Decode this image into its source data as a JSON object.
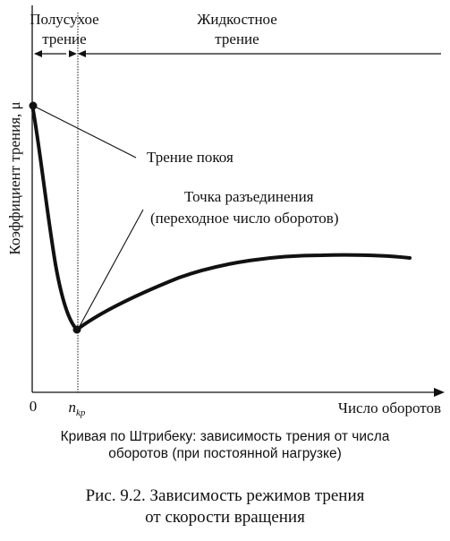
{
  "regions": {
    "semi_dry_line1": "Полусухое",
    "semi_dry_line2": "трение",
    "fluid_line1": "Жидкостное",
    "fluid_line2": "трение"
  },
  "axes": {
    "y_label": "Коэффициент трения, μ",
    "x_label": "Число оборотов",
    "origin": "0",
    "n_crit_main": "n",
    "n_crit_sub": "kp"
  },
  "annotations": {
    "static_friction": "Трение покоя",
    "separation_line1": "Точка разъединения",
    "separation_line2": "(переходное число оборотов)"
  },
  "caption": {
    "line1": "Кривая по Штрибеку: зависимость трения от числа",
    "line2": "оборотов (при постоянной нагрузке)"
  },
  "figure": {
    "line1": "Рис. 9.2. Зависимость режимов трения",
    "line2": "от скорости вращения"
  }
}
